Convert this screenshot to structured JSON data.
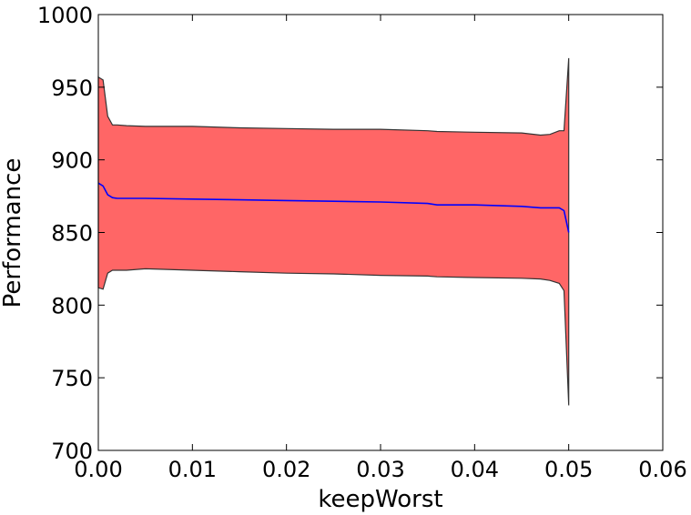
{
  "chart_data": {
    "type": "area",
    "title": "",
    "xlabel": "keepWorst",
    "ylabel": "Performance",
    "xlim": [
      0.0,
      0.06
    ],
    "ylim": [
      700,
      1000
    ],
    "xticks": [
      "0.00",
      "0.01",
      "0.02",
      "0.03",
      "0.04",
      "0.05",
      "0.06"
    ],
    "yticks": [
      "700",
      "750",
      "800",
      "850",
      "900",
      "950",
      "1000"
    ],
    "grid": false,
    "legend": "none",
    "colors": {
      "band_fill": "#ff6666",
      "band_edge": "#333333",
      "mean_line": "#0000ff"
    },
    "x": [
      0.0,
      0.0005,
      0.001,
      0.0015,
      0.002,
      0.003,
      0.005,
      0.01,
      0.015,
      0.02,
      0.025,
      0.03,
      0.035,
      0.036,
      0.04,
      0.045,
      0.047,
      0.048,
      0.049,
      0.0495,
      0.05
    ],
    "series": [
      {
        "role": "mean",
        "values": [
          884,
          882,
          876,
          874,
          873.5,
          873.5,
          873.5,
          873,
          872.5,
          872,
          871.5,
          871,
          870,
          869,
          869,
          868,
          867,
          867,
          867,
          865,
          850
        ]
      },
      {
        "role": "upper",
        "values": [
          957,
          955,
          930,
          924,
          924,
          923.5,
          923,
          923,
          922,
          921.5,
          921,
          921,
          920,
          919.5,
          919,
          918.5,
          917,
          917.5,
          920,
          920,
          970
        ]
      },
      {
        "role": "lower",
        "values": [
          812,
          811,
          822,
          824,
          824,
          824,
          825,
          824,
          823,
          822,
          821.5,
          820.5,
          820,
          819.5,
          819,
          818.5,
          818,
          817,
          815,
          810,
          731
        ]
      }
    ]
  }
}
